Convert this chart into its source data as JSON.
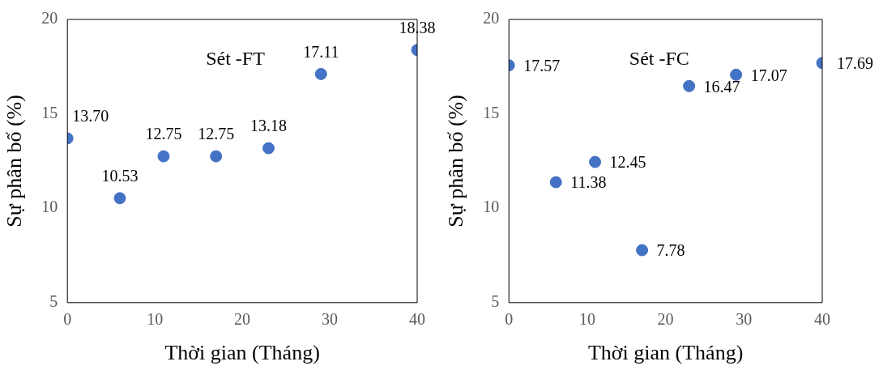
{
  "chart_data": [
    {
      "type": "scatter",
      "xlabel": "Thời gian (Tháng)",
      "ylabel": "Sự phân bố (%)",
      "annotations": [
        "Sét -FT"
      ],
      "x": [
        0,
        6,
        11,
        17,
        23,
        29,
        40
      ],
      "series": [
        {
          "color": "#4472c4",
          "values": [
            13.7,
            10.53,
            12.75,
            12.75,
            13.18,
            17.11,
            18.38
          ],
          "value_labels": [
            "13.70",
            "10.53",
            "12.75",
            "12.75",
            "13.18",
            "17.11",
            "18.38"
          ]
        }
      ],
      "xlim": [
        0,
        40
      ],
      "xticks": [
        0,
        10,
        20,
        30,
        40
      ],
      "ylim": [
        5,
        20
      ],
      "yticks": [
        5,
        10,
        15,
        20
      ],
      "grid": false,
      "legend": false,
      "marker": "circle"
    },
    {
      "type": "scatter",
      "xlabel": "Thời gian (Tháng)",
      "ylabel": "Sự phân bố (%)",
      "annotations": [
        "Sét -FC"
      ],
      "x": [
        0,
        6,
        11,
        17,
        23,
        29,
        40
      ],
      "series": [
        {
          "color": "#4472c4",
          "values": [
            17.57,
            11.38,
            12.45,
            7.78,
            16.47,
            17.07,
            17.69
          ],
          "value_labels": [
            "17.57",
            "11.38",
            "12.45",
            "7.78",
            "16.47",
            "17.07",
            "17.69"
          ]
        }
      ],
      "xlim": [
        0,
        40
      ],
      "xticks": [
        0,
        10,
        20,
        30,
        40
      ],
      "ylim": [
        5,
        20
      ],
      "yticks": [
        5,
        10,
        15,
        20
      ],
      "grid": false,
      "legend": false,
      "marker": "circle"
    }
  ]
}
